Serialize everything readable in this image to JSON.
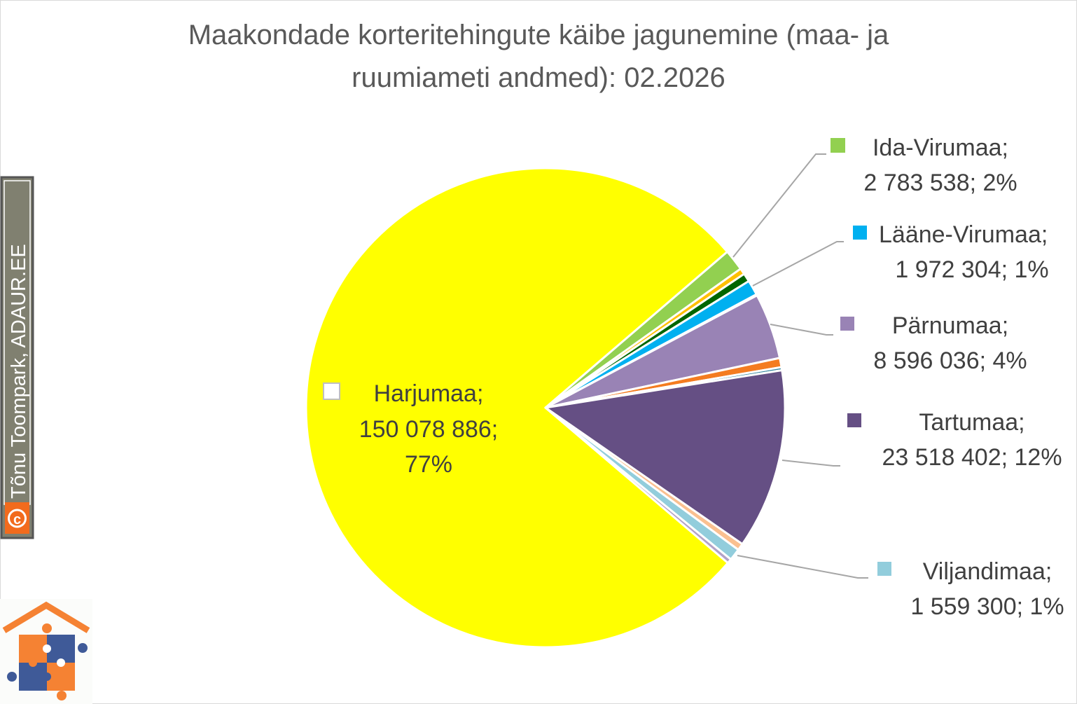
{
  "chart_data": {
    "type": "pie",
    "title_lines": [
      "Maakondade korteritehingute käibe jagunemine (maa- ja",
      "ruumiameti andmed): 02.2026"
    ],
    "start_angle_deg_clockwise_from_east": 40.4,
    "slices": [
      {
        "name": "Harjumaa",
        "value": 150078886,
        "percent": "77%",
        "value_label": "150 078 886;",
        "color": "#FFFF00"
      },
      {
        "name": "Ida-Virumaa",
        "value": 2783538,
        "percent": "2%",
        "value_label": "2 783 538; 2%",
        "color": "#92D050"
      },
      {
        "name": "",
        "value": 800000,
        "color": "#FFC000"
      },
      {
        "name": "",
        "value": 1100000,
        "color": "#006600"
      },
      {
        "name": "Lääne-Virumaa",
        "value": 1972304,
        "percent": "1%",
        "value_label": "1 972 304; 1%",
        "color": "#00B0F0"
      },
      {
        "name": "",
        "value": 150000,
        "color": "#E06060"
      },
      {
        "name": "Pärnumaa",
        "value": 8596036,
        "percent": "4%",
        "value_label": "8 596 036; 4%",
        "color": "#9983B5"
      },
      {
        "name": "",
        "value": 1200000,
        "color": "#F47C20"
      },
      {
        "name": "",
        "value": 400000,
        "color": "#31859C"
      },
      {
        "name": "Tartumaa",
        "value": 23518402,
        "percent": "12%",
        "value_label": "23 518 402; 12%",
        "color": "#654F84"
      },
      {
        "name": "",
        "value": 900000,
        "color": "#FAC090"
      },
      {
        "name": "Viljandimaa",
        "value": 1559300,
        "percent": "1%",
        "value_label": "1 559 300; 1%",
        "color": "#92CDDC"
      },
      {
        "name": "",
        "value": 600000,
        "color": "#B3A2C7"
      }
    ],
    "labels": {
      "harju": [
        "Harjumaa;",
        "150 078 886;",
        "77%"
      ],
      "idaviru": [
        "Ida-Virumaa;",
        "2 783 538; 2%"
      ],
      "laaneviru": [
        "Lääne-Virumaa;",
        "1 972 304; 1%"
      ],
      "parnu": [
        "Pärnumaa;",
        "8 596 036; 4%"
      ],
      "tartu": [
        "Tartumaa;",
        "23 518 402; 12%"
      ],
      "viljandi": [
        "Viljandimaa;",
        "1 559 300; 1%"
      ]
    }
  },
  "watermark": {
    "credit": "Tõnu Toompark, ADAUR.EE",
    "copyright_symbol": "©"
  }
}
